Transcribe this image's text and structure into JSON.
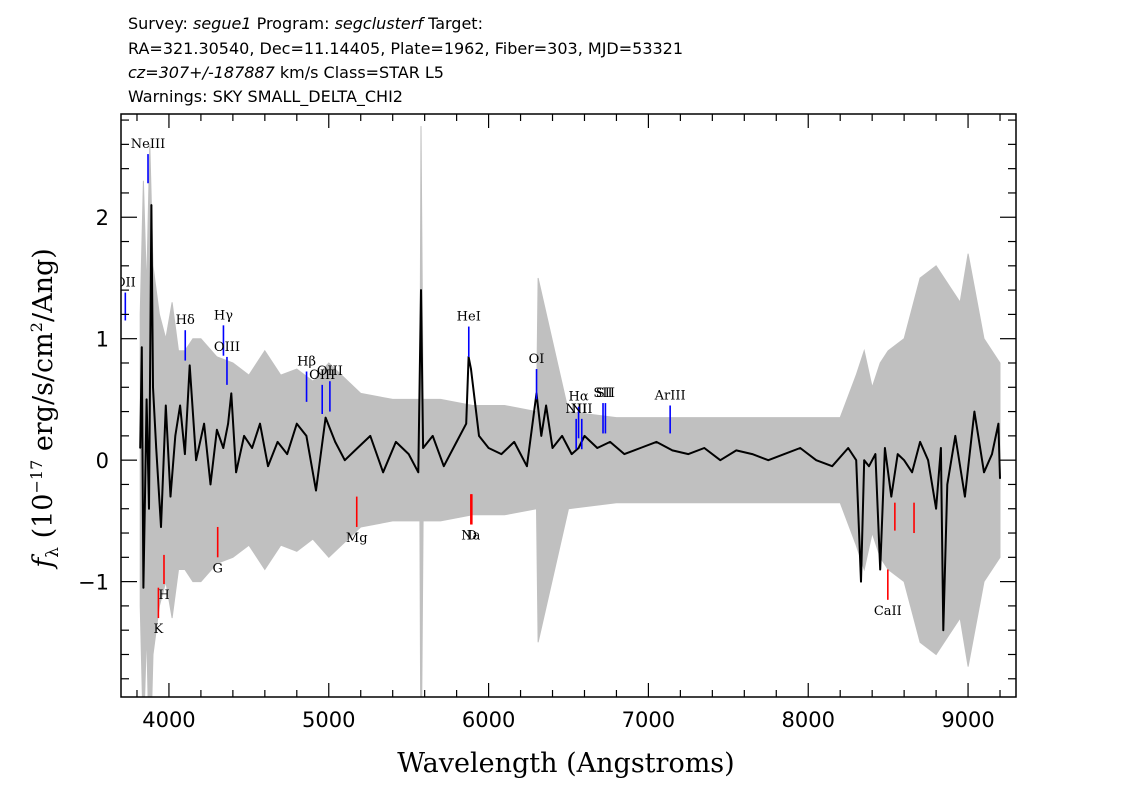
{
  "header": {
    "line1": {
      "survey_label": "Survey:",
      "survey": "segue1",
      "program_label": "Program:",
      "program": "segclusterf",
      "target_label": "Target:"
    },
    "line2": "RA=321.30540, Dec=11.14405, Plate=1962, Fiber=303, MJD=53321",
    "line3": {
      "cz": "cz=307+/-187887",
      "rest": "km/s  Class=STAR L5"
    },
    "line4": "Warnings: SKY SMALL_DELTA_CHI2"
  },
  "colors": {
    "flux": "#000000",
    "error": "#c0c0c0",
    "emission": "#0000ff",
    "absorption": "#ff0000",
    "axes": "#000000"
  },
  "chart_data": {
    "type": "line",
    "title": "",
    "xlabel": "Wavelength (Angstroms)",
    "ylabel": "f_λ (10^-17 erg/s/cm²/Ang)",
    "xlim": [
      3700,
      9300
    ],
    "ylim": [
      -1.95,
      2.85
    ],
    "xticks": [
      4000,
      5000,
      6000,
      7000,
      8000,
      9000
    ],
    "xtick_labels": [
      "4000",
      "5000",
      "6000",
      "7000",
      "8000",
      "9000"
    ],
    "yticks": [
      -1,
      0,
      1,
      2
    ],
    "ytick_labels": [
      "−1",
      "0",
      "1",
      "2"
    ],
    "grid": false,
    "legend": "none",
    "series": [
      {
        "name": "flux",
        "x": [
          3820,
          3830,
          3840,
          3850,
          3860,
          3875,
          3890,
          3900,
          3920,
          3950,
          3980,
          4010,
          4040,
          4070,
          4100,
          4130,
          4170,
          4220,
          4260,
          4300,
          4340,
          4370,
          4390,
          4420,
          4470,
          4520,
          4570,
          4620,
          4680,
          4740,
          4800,
          4860,
          4920,
          4980,
          5040,
          5100,
          5180,
          5260,
          5340,
          5420,
          5500,
          5560,
          5577,
          5590,
          5650,
          5720,
          5800,
          5860,
          5875,
          5890,
          5940,
          6000,
          6080,
          6160,
          6240,
          6300,
          6330,
          6360,
          6400,
          6460,
          6520,
          6563,
          6600,
          6680,
          6760,
          6850,
          6950,
          7050,
          7150,
          7250,
          7350,
          7450,
          7550,
          7650,
          7750,
          7850,
          7950,
          8050,
          8150,
          8250,
          8300,
          8330,
          8350,
          8380,
          8420,
          8450,
          8480,
          8520,
          8560,
          8600,
          8650,
          8700,
          8750,
          8800,
          8830,
          8845,
          8870,
          8920,
          8980,
          9040,
          9100,
          9150,
          9190,
          9200
        ],
        "y": [
          0.1,
          0.93,
          -1.05,
          -0.3,
          0.5,
          -0.4,
          2.1,
          0.6,
          0.1,
          -0.55,
          0.45,
          -0.3,
          0.2,
          0.45,
          0.05,
          0.78,
          0.0,
          0.3,
          -0.2,
          0.25,
          0.1,
          0.3,
          0.55,
          -0.1,
          0.2,
          0.1,
          0.3,
          -0.05,
          0.15,
          0.05,
          0.3,
          0.2,
          -0.25,
          0.35,
          0.15,
          0.0,
          0.1,
          0.2,
          -0.1,
          0.15,
          0.05,
          -0.1,
          1.4,
          0.1,
          0.2,
          -0.05,
          0.15,
          0.3,
          0.85,
          0.75,
          0.2,
          0.1,
          0.05,
          0.15,
          -0.05,
          0.55,
          0.2,
          0.45,
          0.1,
          0.2,
          0.05,
          0.1,
          0.2,
          0.1,
          0.15,
          0.05,
          0.1,
          0.15,
          0.08,
          0.05,
          0.1,
          0.0,
          0.08,
          0.05,
          0.0,
          0.05,
          0.1,
          0.0,
          -0.05,
          0.1,
          0.0,
          -1.0,
          0.0,
          -0.05,
          0.05,
          -0.9,
          0.1,
          -0.3,
          0.05,
          0.0,
          -0.1,
          0.15,
          0.0,
          -0.4,
          0.1,
          -1.4,
          -0.2,
          0.2,
          -0.3,
          0.4,
          -0.1,
          0.05,
          0.3,
          -0.15
        ]
      },
      {
        "name": "error",
        "x": [
          3820,
          3840,
          3860,
          3880,
          3900,
          3940,
          3980,
          4020,
          4060,
          4100,
          4150,
          4200,
          4300,
          4400,
          4500,
          4600,
          4700,
          4800,
          4900,
          5000,
          5200,
          5400,
          5570,
          5577,
          5590,
          5700,
          5900,
          6100,
          6300,
          6310,
          6500,
          6800,
          7000,
          7300,
          7600,
          7900,
          8200,
          8300,
          8350,
          8400,
          8450,
          8500,
          8600,
          8700,
          8800,
          8900,
          8950,
          9000,
          9100,
          9200
        ],
        "y": [
          1.2,
          2.3,
          1.4,
          2.6,
          1.6,
          1.2,
          1.0,
          1.3,
          0.9,
          0.9,
          1.0,
          1.0,
          0.85,
          0.8,
          0.7,
          0.9,
          0.7,
          0.75,
          0.65,
          0.8,
          0.55,
          0.5,
          0.5,
          2.75,
          0.5,
          0.5,
          0.45,
          0.45,
          0.4,
          1.5,
          0.4,
          0.35,
          0.35,
          0.35,
          0.35,
          0.35,
          0.35,
          0.7,
          0.9,
          0.6,
          0.8,
          0.9,
          1.0,
          1.5,
          1.6,
          1.4,
          1.3,
          1.7,
          1.0,
          0.8
        ]
      }
    ],
    "emission_lines": [
      {
        "label": "NeIII",
        "x": 3869,
        "y0": 2.28,
        "y1": 2.52
      },
      {
        "label": "OII",
        "x": 3727,
        "y0": 1.15,
        "y1": 1.38
      },
      {
        "label": "Hδ",
        "x": 4102,
        "y0": 0.82,
        "y1": 1.07
      },
      {
        "label": "Hγ",
        "x": 4341,
        "y0": 0.86,
        "y1": 1.11
      },
      {
        "label": "OIII",
        "x": 4363,
        "y0": 0.62,
        "y1": 0.85
      },
      {
        "label": "Hβ",
        "x": 4861,
        "y0": 0.48,
        "y1": 0.73
      },
      {
        "label": "OIII",
        "x": 4959,
        "y0": 0.38,
        "y1": 0.62
      },
      {
        "label": "OIII",
        "x": 5007,
        "y0": 0.4,
        "y1": 0.65
      },
      {
        "label": "HeI",
        "x": 5876,
        "y0": 0.85,
        "y1": 1.1
      },
      {
        "label": "OI",
        "x": 6300,
        "y0": 0.5,
        "y1": 0.75
      },
      {
        "label": "NII",
        "x": 6548,
        "y0": 0.09,
        "y1": 0.34
      },
      {
        "label": "Hα",
        "x": 6563,
        "y0": 0.18,
        "y1": 0.44
      },
      {
        "label": "NII",
        "x": 6583,
        "y0": 0.09,
        "y1": 0.34
      },
      {
        "label": "SII",
        "x": 6716,
        "y0": 0.22,
        "y1": 0.47
      },
      {
        "label": "SII",
        "x": 6731,
        "y0": 0.22,
        "y1": 0.47
      },
      {
        "label": "ArIII",
        "x": 7136,
        "y0": 0.22,
        "y1": 0.45
      }
    ],
    "absorption_lines": [
      {
        "label": "K",
        "x": 3934,
        "y0": -1.05,
        "y1": -1.3
      },
      {
        "label": "H",
        "x": 3969,
        "y0": -0.78,
        "y1": -1.02
      },
      {
        "label": "G",
        "x": 4305,
        "y0": -0.55,
        "y1": -0.8
      },
      {
        "label": "Mg",
        "x": 5175,
        "y0": -0.3,
        "y1": -0.55
      },
      {
        "label": "Na",
        "x": 5889,
        "y0": -0.28,
        "y1": -0.53
      },
      {
        "label": "D",
        "x": 5895,
        "y0": -0.28,
        "y1": -0.53
      },
      {
        "label": "CaII",
        "x": 8498,
        "y0": -0.9,
        "y1": -1.15
      },
      {
        "label": "",
        "x": 8542,
        "y0": -0.35,
        "y1": -0.58
      },
      {
        "label": "",
        "x": 8662,
        "y0": -0.35,
        "y1": -0.6
      }
    ]
  }
}
